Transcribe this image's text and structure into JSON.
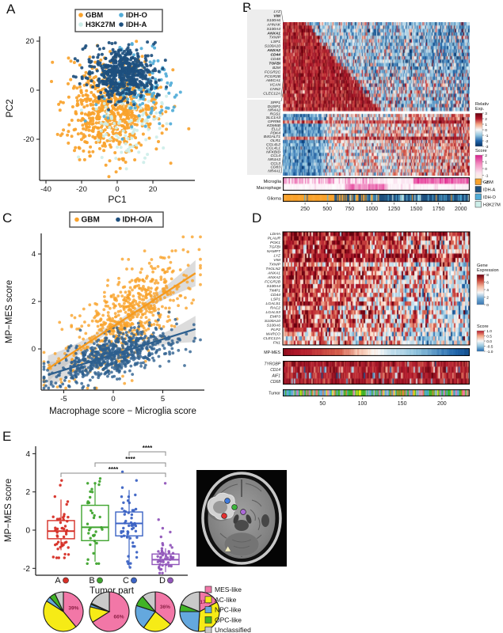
{
  "figure": {
    "background": "#ffffff"
  },
  "chart_data": {
    "panelA": {
      "label": "A",
      "type": "scatter",
      "xlabel": "PC1",
      "ylabel": "PC2",
      "xticks": [
        -40,
        -20,
        0,
        20
      ],
      "yticks": [
        -20,
        0,
        20
      ],
      "legend": [
        {
          "label": "GBM",
          "color": "#F9A22B"
        },
        {
          "label": "H3K27M",
          "color": "#CDEEE9"
        },
        {
          "label": "IDH-O",
          "color": "#51ACD8"
        },
        {
          "label": "IDH-A",
          "color": "#1D4F7E"
        }
      ],
      "clusters": [
        {
          "name": "GBM",
          "color": "#F9A22B",
          "n": 680,
          "cx": -4,
          "cy": -7.5,
          "sx": 13,
          "sy": 9.5
        },
        {
          "name": "H3K27M",
          "color": "#CDEEE9",
          "n": 95,
          "cx": 7,
          "cy": -15,
          "sx": 11,
          "sy": 9
        },
        {
          "name": "IDH-O",
          "color": "#51ACD8",
          "n": 140,
          "cx": 14,
          "cy": 1,
          "sx": 10,
          "sy": 7.5
        },
        {
          "name": "IDH-A",
          "color": "#1D4F7E",
          "n": 520,
          "cx": 4,
          "cy": 6.5,
          "sx": 9,
          "sy": 5
        }
      ]
    },
    "panelB": {
      "label": "B",
      "type": "heatmap",
      "genes_top": [
        {
          "name": "LYZ",
          "bold": false
        },
        {
          "name": "VIM",
          "bold": true
        },
        {
          "name": "S100A6",
          "bold": false
        },
        {
          "name": "AHNAK",
          "bold": false
        },
        {
          "name": "S100A4",
          "bold": false
        },
        {
          "name": "ANXA1",
          "bold": true
        },
        {
          "name": "TXNIP",
          "bold": false
        },
        {
          "name": "LSP1",
          "bold": false
        },
        {
          "name": "S100A10",
          "bold": false
        },
        {
          "name": "ANXA2",
          "bold": true
        },
        {
          "name": "CD44",
          "bold": true
        },
        {
          "name": "CD48",
          "bold": false
        },
        {
          "name": "TGFBI",
          "bold": true
        },
        {
          "name": "B2M",
          "bold": false
        },
        {
          "name": "FCGR2C",
          "bold": false
        },
        {
          "name": "FCGR2B",
          "bold": false
        },
        {
          "name": "AMICA1",
          "bold": false
        },
        {
          "name": "VCAN",
          "bold": false
        },
        {
          "name": "CNN2",
          "bold": false
        },
        {
          "name": "CLEC12A",
          "bold": false
        }
      ],
      "genes_bottom": [
        "SPP1",
        "DUSP1",
        "NR4A2",
        "RGS1",
        "SLC1A3",
        "GPR98",
        "KDM6B",
        "ELL2",
        "PDK4",
        "B4GALT1",
        "OLR1",
        "CCL4L2",
        "CCL4L1",
        "NFKBID",
        "CCL4",
        "NR4A3",
        "CCL3",
        "CD83",
        "NR4A1"
      ],
      "row_annotations": [
        "Microglia",
        "Macrophage",
        "Glioma"
      ],
      "xticks": [
        250,
        500,
        750,
        1000,
        1250,
        1500,
        1750,
        2000
      ],
      "n_cells": 2100,
      "colorbar_exp": {
        "title": [
          "Relativ",
          "Exp."
        ],
        "ticks": [
          3,
          2,
          1,
          0,
          -1,
          -2,
          -3
        ]
      },
      "colorbar_score": {
        "title": [
          "Score"
        ],
        "ticks": [
          2,
          1,
          0,
          -1,
          -2
        ]
      },
      "legend": [
        {
          "label": "GBM",
          "color": "#F9A22B"
        },
        {
          "label": "IDH-A",
          "color": "#1D4F7E"
        },
        {
          "label": "IDH-O",
          "color": "#51ACD8"
        },
        {
          "label": "H3K27M",
          "color": "#CDEEE9"
        }
      ]
    },
    "panelC": {
      "label": "C",
      "type": "scatter",
      "xlabel": "Macrophage score − Microglia score",
      "ylabel": "MP−MES score",
      "xticks": [
        -5,
        0,
        5
      ],
      "yticks": [
        0,
        2,
        4
      ],
      "legend": [
        {
          "label": "GBM",
          "color": "#F9A22B"
        },
        {
          "label": "IDH-O/A",
          "color": "#1D4F7E"
        }
      ],
      "series": [
        {
          "name": "GBM",
          "color": "#F9A22B",
          "n": 630,
          "x_mean": 1.3,
          "x_sd": 3.1,
          "slope": 0.27,
          "intercept": 0.95,
          "resid_sd": 0.88
        },
        {
          "name": "IDH-O/A",
          "color": "#2D5F8E",
          "n": 660,
          "x_mean": 0.3,
          "x_sd": 2.9,
          "slope": 0.13,
          "intercept": -0.24,
          "resid_sd": 0.45
        }
      ],
      "fit_lines": [
        {
          "name": "GBM",
          "color": "#F59A1E",
          "x0": -6.6,
          "x1": 8.3,
          "slope": 0.27,
          "intercept": 0.95
        },
        {
          "name": "IDH-O/A",
          "color": "#2D5F8E",
          "x0": -6.6,
          "x1": 8.3,
          "slope": 0.13,
          "intercept": -0.24
        }
      ]
    },
    "panelD": {
      "label": "D",
      "type": "heatmap",
      "genes": [
        {
          "name": "LDHA",
          "red": 0.95,
          "fade": 0.3
        },
        {
          "name": "PLAUR",
          "red": 0.92,
          "fade": 0.45
        },
        {
          "name": "PGK1",
          "red": 0.9,
          "fade": 0.5
        },
        {
          "name": "TGFBI",
          "red": 0.9,
          "fade": 0.55
        },
        {
          "name": "NAMPT",
          "red": 0.85,
          "fade": 0.5
        },
        {
          "name": "LYZ",
          "red": 0.97,
          "fade": 0.25
        },
        {
          "name": "VIM",
          "red": 0.96,
          "fade": 0.3
        },
        {
          "name": "TXNIP",
          "red": 0.55,
          "fade": 0.45
        },
        {
          "name": "TAGLN2",
          "red": 0.8,
          "fade": 0.55
        },
        {
          "name": "ANXA1",
          "red": 0.8,
          "fade": 0.55
        },
        {
          "name": "ANXA2",
          "red": 0.85,
          "fade": 0.6
        },
        {
          "name": "FCGR2B",
          "red": 0.6,
          "fade": 0.5
        },
        {
          "name": "S100A4",
          "red": 0.8,
          "fade": 0.6
        },
        {
          "name": "TIMP1",
          "red": 0.75,
          "fade": 0.6
        },
        {
          "name": "CD44",
          "red": 0.72,
          "fade": 0.58
        },
        {
          "name": "LSP1",
          "red": 0.68,
          "fade": 0.58
        },
        {
          "name": "LGALS1",
          "red": 0.85,
          "fade": 0.65
        },
        {
          "name": "RAC2",
          "red": 0.6,
          "fade": 0.55
        },
        {
          "name": "LGALS3",
          "red": 0.72,
          "fade": 0.62
        },
        {
          "name": "EMP3",
          "red": 0.78,
          "fade": 0.64
        },
        {
          "name": "S100A10",
          "red": 0.78,
          "fade": 0.64
        },
        {
          "name": "S100A6",
          "red": 0.84,
          "fade": 0.66
        },
        {
          "name": "PLP2",
          "red": 0.68,
          "fade": 0.6
        },
        {
          "name": "MARCO",
          "red": 0.5,
          "fade": 0.48
        },
        {
          "name": "CLEC12A",
          "red": 0.45,
          "fade": 0.45
        },
        {
          "name": "FN1",
          "red": 0.58,
          "fade": 0.55
        }
      ],
      "mpmes_label": "MP-MES",
      "bottom_genes": [
        "TYROBP",
        "CD14",
        "AIF1",
        "CD68"
      ],
      "tumor_label": "Tumor",
      "xticks": [
        50,
        100,
        150,
        200
      ],
      "n_cells": 235,
      "colorbar_expr": {
        "title": [
          "Gene",
          "Expression"
        ],
        "ticks": [
          8,
          6,
          4,
          2,
          0
        ]
      },
      "colorbar_score": {
        "title": [
          "Score"
        ],
        "ticks": [
          "1.0",
          "0.5",
          "0.0",
          "-0.5",
          "-1.0"
        ]
      },
      "tumor_palette": [
        "#41B325",
        "#64A8DE",
        "#F277A7",
        "#E8803C",
        "#BDBDBD",
        "#2BB5A0",
        "#F6EB16"
      ]
    },
    "panelE": {
      "label": "E",
      "type": "boxplot",
      "ylabel": "MP−MES score",
      "xlabel": "Tumor part",
      "yticks": [
        -2,
        0,
        2,
        4
      ],
      "groups": [
        {
          "label": "A",
          "color": "#D62F27",
          "median": -0.05,
          "q1": -0.45,
          "q3": 0.5,
          "lo": -1.05,
          "hi": 1.6,
          "n": 45,
          "spread": 0.95,
          "clip": [
            -1.45,
            2.3
          ],
          "extra": [
            2.6,
            2.35
          ]
        },
        {
          "label": "B",
          "color": "#3FA42E",
          "median": 0.15,
          "q1": -0.55,
          "q3": 1.3,
          "lo": -1.65,
          "hi": 2.45,
          "n": 34,
          "spread": 1.1,
          "clip": [
            -1.75,
            2.45
          ],
          "extra": [
            2.7,
            2.55
          ]
        },
        {
          "label": "C",
          "color": "#3C63C4",
          "median": 0.35,
          "q1": -0.3,
          "q3": 0.95,
          "lo": -1.95,
          "hi": 2.1,
          "n": 52,
          "spread": 1.0,
          "clip": [
            -1.95,
            2.3
          ],
          "extra": [
            3.05,
            2.6
          ]
        },
        {
          "label": "D",
          "color": "#9156BA",
          "median": -1.55,
          "q1": -1.8,
          "q3": -1.25,
          "lo": -2.2,
          "hi": -0.95,
          "n": 44,
          "spread": 0.42,
          "clip": [
            -2.25,
            -0.6
          ],
          "extra": [
            2.45,
            0.55,
            0.1,
            -0.1,
            -0.35
          ]
        }
      ],
      "significance": [
        {
          "a": "C",
          "b": "D",
          "label": "****"
        },
        {
          "a": "B",
          "b": "D",
          "label": "****"
        },
        {
          "a": "A",
          "b": "D",
          "label": "****"
        }
      ],
      "pies": [
        {
          "part": "A",
          "values": [
            39,
            45,
            4,
            5,
            7
          ],
          "label": "39%"
        },
        {
          "part": "B",
          "values": [
            66,
            13,
            2,
            1,
            18
          ],
          "label": "66%"
        },
        {
          "part": "C",
          "values": [
            36,
            24,
            20,
            9,
            11
          ],
          "label": "36%"
        },
        {
          "part": "D",
          "values": [
            17,
            34,
            24,
            6,
            19
          ],
          "label": "17%"
        }
      ],
      "pie_legend": [
        {
          "label": "MES-like",
          "color": "#F277A7"
        },
        {
          "label": "AC-like",
          "color": "#F6EB16"
        },
        {
          "label": "NPC-like",
          "color": "#64A8DE"
        },
        {
          "label": "OPC-like",
          "color": "#41B325"
        },
        {
          "label": "Unclassified",
          "color": "#C9C9C9"
        }
      ]
    }
  }
}
